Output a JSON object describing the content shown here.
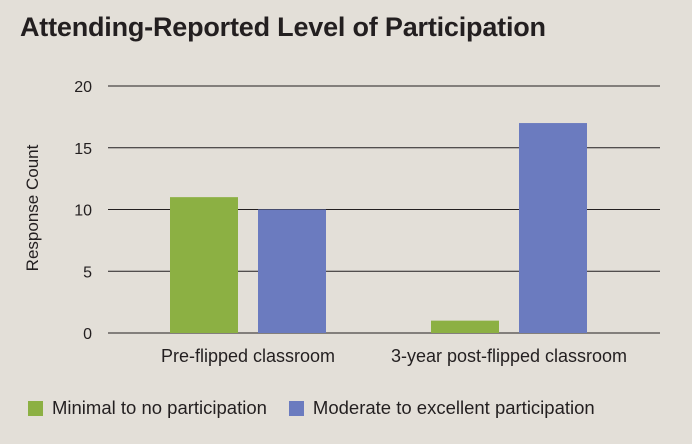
{
  "chart_data": {
    "type": "bar",
    "title": "Attending-Reported Level of Participation",
    "xlabel": "",
    "ylabel": "Response Count",
    "ylim": [
      0,
      20
    ],
    "yticks": [
      0,
      5,
      10,
      15,
      20
    ],
    "grid": true,
    "legend_position": "bottom",
    "categories": [
      "Pre-flipped classroom",
      "3-year post-flipped classroom"
    ],
    "series": [
      {
        "name": "Minimal to no participation",
        "values": [
          11,
          1
        ],
        "color": "#8cb043"
      },
      {
        "name": "Moderate to excellent participation",
        "values": [
          10,
          17
        ],
        "color": "#6b7bbf"
      }
    ]
  }
}
